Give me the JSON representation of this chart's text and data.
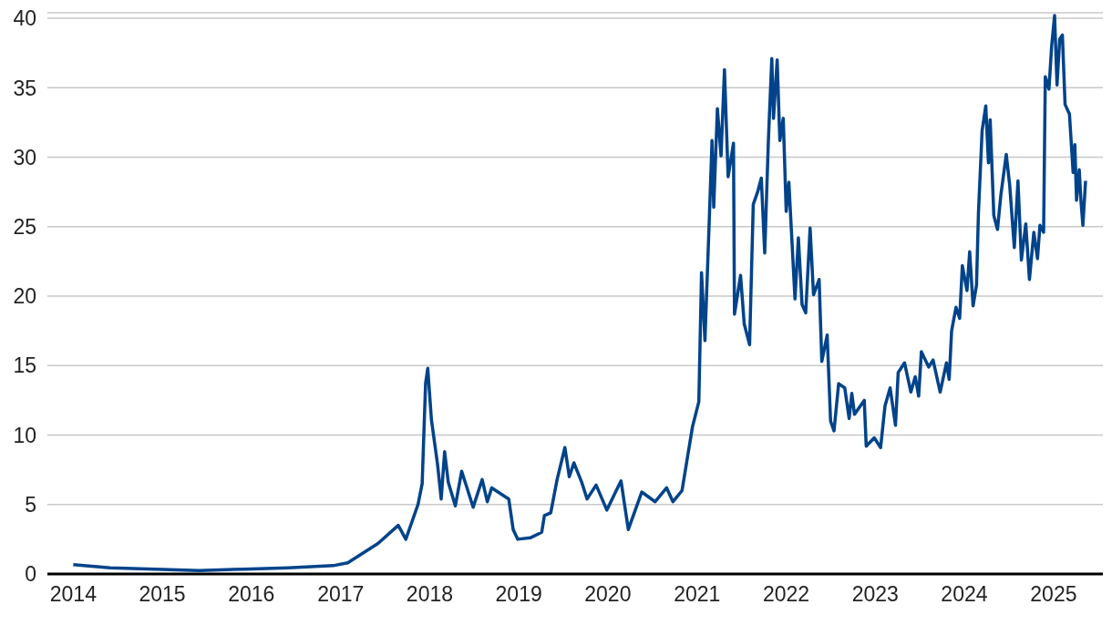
{
  "chart_data": {
    "type": "line",
    "x": [
      "2014-01-01",
      "2014-06-01",
      "2014-12-01",
      "2015-06-01",
      "2015-12-01",
      "2016-06-01",
      "2016-12-01",
      "2017-01-30",
      "2017-06-03",
      "2017-08-25",
      "2017-09-25",
      "2017-11-14",
      "2017-12-01",
      "2017-12-15",
      "2017-12-24",
      "2018-01-08",
      "2018-02-02",
      "2018-02-17",
      "2018-03-03",
      "2018-03-18",
      "2018-04-16",
      "2018-05-12",
      "2018-06-28",
      "2018-08-04",
      "2018-08-25",
      "2018-09-12",
      "2018-11-21",
      "2018-12-09",
      "2018-12-28",
      "2019-02-17",
      "2019-04-05",
      "2019-04-16",
      "2019-05-12",
      "2019-06-07",
      "2019-07-09",
      "2019-07-27",
      "2019-08-15",
      "2019-09-16",
      "2019-10-08",
      "2019-11-14",
      "2019-12-28",
      "2020-02-24",
      "2020-03-25",
      "2020-05-19",
      "2020-07-13",
      "2020-08-29",
      "2020-09-24",
      "2020-10-31",
      "2020-12-13",
      "2021-01-08",
      "2021-01-19",
      "2021-02-02",
      "2021-02-20",
      "2021-03-03",
      "2021-03-10",
      "2021-03-25",
      "2021-04-09",
      "2021-04-23",
      "2021-05-08",
      "2021-05-30",
      "2021-06-03",
      "2021-06-28",
      "2021-07-13",
      "2021-08-04",
      "2021-08-19",
      "2021-09-06",
      "2021-09-21",
      "2021-10-05",
      "2021-10-20",
      "2021-11-03",
      "2021-11-10",
      "2021-11-25",
      "2021-12-06",
      "2021-12-20",
      "2022-01-01",
      "2022-01-12",
      "2022-02-06",
      "2022-02-20",
      "2022-03-07",
      "2022-03-22",
      "2022-04-09",
      "2022-04-23",
      "2022-05-16",
      "2022-05-27",
      "2022-06-18",
      "2022-07-02",
      "2022-07-16",
      "2022-08-04",
      "2022-08-29",
      "2022-09-16",
      "2022-09-27",
      "2022-10-08",
      "2022-11-17",
      "2022-11-25",
      "2022-12-28",
      "2023-01-23",
      "2023-02-10",
      "2023-03-03",
      "2023-03-25",
      "2023-04-05",
      "2023-05-01",
      "2023-05-27",
      "2023-06-14",
      "2023-06-28",
      "2023-07-09",
      "2023-08-08",
      "2023-08-26",
      "2023-09-24",
      "2023-10-20",
      "2023-10-31",
      "2023-11-10",
      "2023-11-28",
      "2023-12-13",
      "2023-12-24",
      "2024-01-12",
      "2024-01-23",
      "2024-02-06",
      "2024-02-20",
      "2024-02-28",
      "2024-03-14",
      "2024-03-29",
      "2024-04-09",
      "2024-04-16",
      "2024-05-01",
      "2024-05-16",
      "2024-05-30",
      "2024-06-21",
      "2024-07-05",
      "2024-07-24",
      "2024-08-08",
      "2024-08-22",
      "2024-09-09",
      "2024-09-24",
      "2024-10-12",
      "2024-10-27",
      "2024-11-06",
      "2024-11-21",
      "2024-11-28",
      "2024-12-13",
      "2024-12-24",
      "2025-01-05",
      "2025-01-15",
      "2025-01-26",
      "2025-02-06",
      "2025-02-17",
      "2025-03-07",
      "2025-03-22",
      "2025-03-29",
      "2025-04-05",
      "2025-04-16",
      "2025-04-23",
      "2025-05-01",
      "2025-05-12"
    ],
    "series": [
      {
        "color": "#00438a",
        "values": [
          0.67,
          0.45,
          0.35,
          0.25,
          0.35,
          0.45,
          0.6,
          0.8,
          2.2,
          3.5,
          2.5,
          5.0,
          6.5,
          13.7,
          14.8,
          11.1,
          7.9,
          5.4,
          8.8,
          6.6,
          4.9,
          7.4,
          4.8,
          6.8,
          5.2,
          6.2,
          5.4,
          3.2,
          2.5,
          2.6,
          3.0,
          4.2,
          4.4,
          6.8,
          9.1,
          7.0,
          8.0,
          6.6,
          5.4,
          6.4,
          4.6,
          6.7,
          3.2,
          5.9,
          5.2,
          6.2,
          5.2,
          6.0,
          10.6,
          12.4,
          21.7,
          16.8,
          25.6,
          31.2,
          26.4,
          33.5,
          30.1,
          36.3,
          28.6,
          31.0,
          18.7,
          21.5,
          18.0,
          16.5,
          26.6,
          27.5,
          28.5,
          23.1,
          31.2,
          37.1,
          32.8,
          37.0,
          31.2,
          32.8,
          26.1,
          28.2,
          19.8,
          24.2,
          19.4,
          18.8,
          24.9,
          20.1,
          21.2,
          15.3,
          17.2,
          11.0,
          10.3,
          13.7,
          13.4,
          11.2,
          13.0,
          11.5,
          12.5,
          9.2,
          9.8,
          9.1,
          12.1,
          13.4,
          10.7,
          14.5,
          15.2,
          13.1,
          14.2,
          12.8,
          16.0,
          14.9,
          15.4,
          13.1,
          15.2,
          14.0,
          17.5,
          19.2,
          18.4,
          22.2,
          20.4,
          23.2,
          19.3,
          20.8,
          26.0,
          31.9,
          33.7,
          29.6,
          32.7,
          25.8,
          24.8,
          27.3,
          30.2,
          28.0,
          23.5,
          28.3,
          22.6,
          25.2,
          21.2,
          24.6,
          22.7,
          25.1,
          24.6,
          35.8,
          34.9,
          38.0,
          40.2,
          35.2,
          38.5,
          38.8,
          33.8,
          33.1,
          28.9,
          30.9,
          26.9,
          29.1,
          26.9,
          25.1,
          28.3
        ]
      }
    ],
    "xlim": [
      "2013-09-17",
      "2025-07-22"
    ],
    "xticks": [
      "2014",
      "2015",
      "2016",
      "2017",
      "2018",
      "2019",
      "2020",
      "2021",
      "2022",
      "2023",
      "2024",
      "2025"
    ],
    "ylim": [
      0,
      40.4
    ],
    "yticks": [
      0,
      5,
      10,
      15,
      20,
      25,
      30,
      35,
      40
    ],
    "grid": "y",
    "marker": "none",
    "line_style": "solid"
  }
}
